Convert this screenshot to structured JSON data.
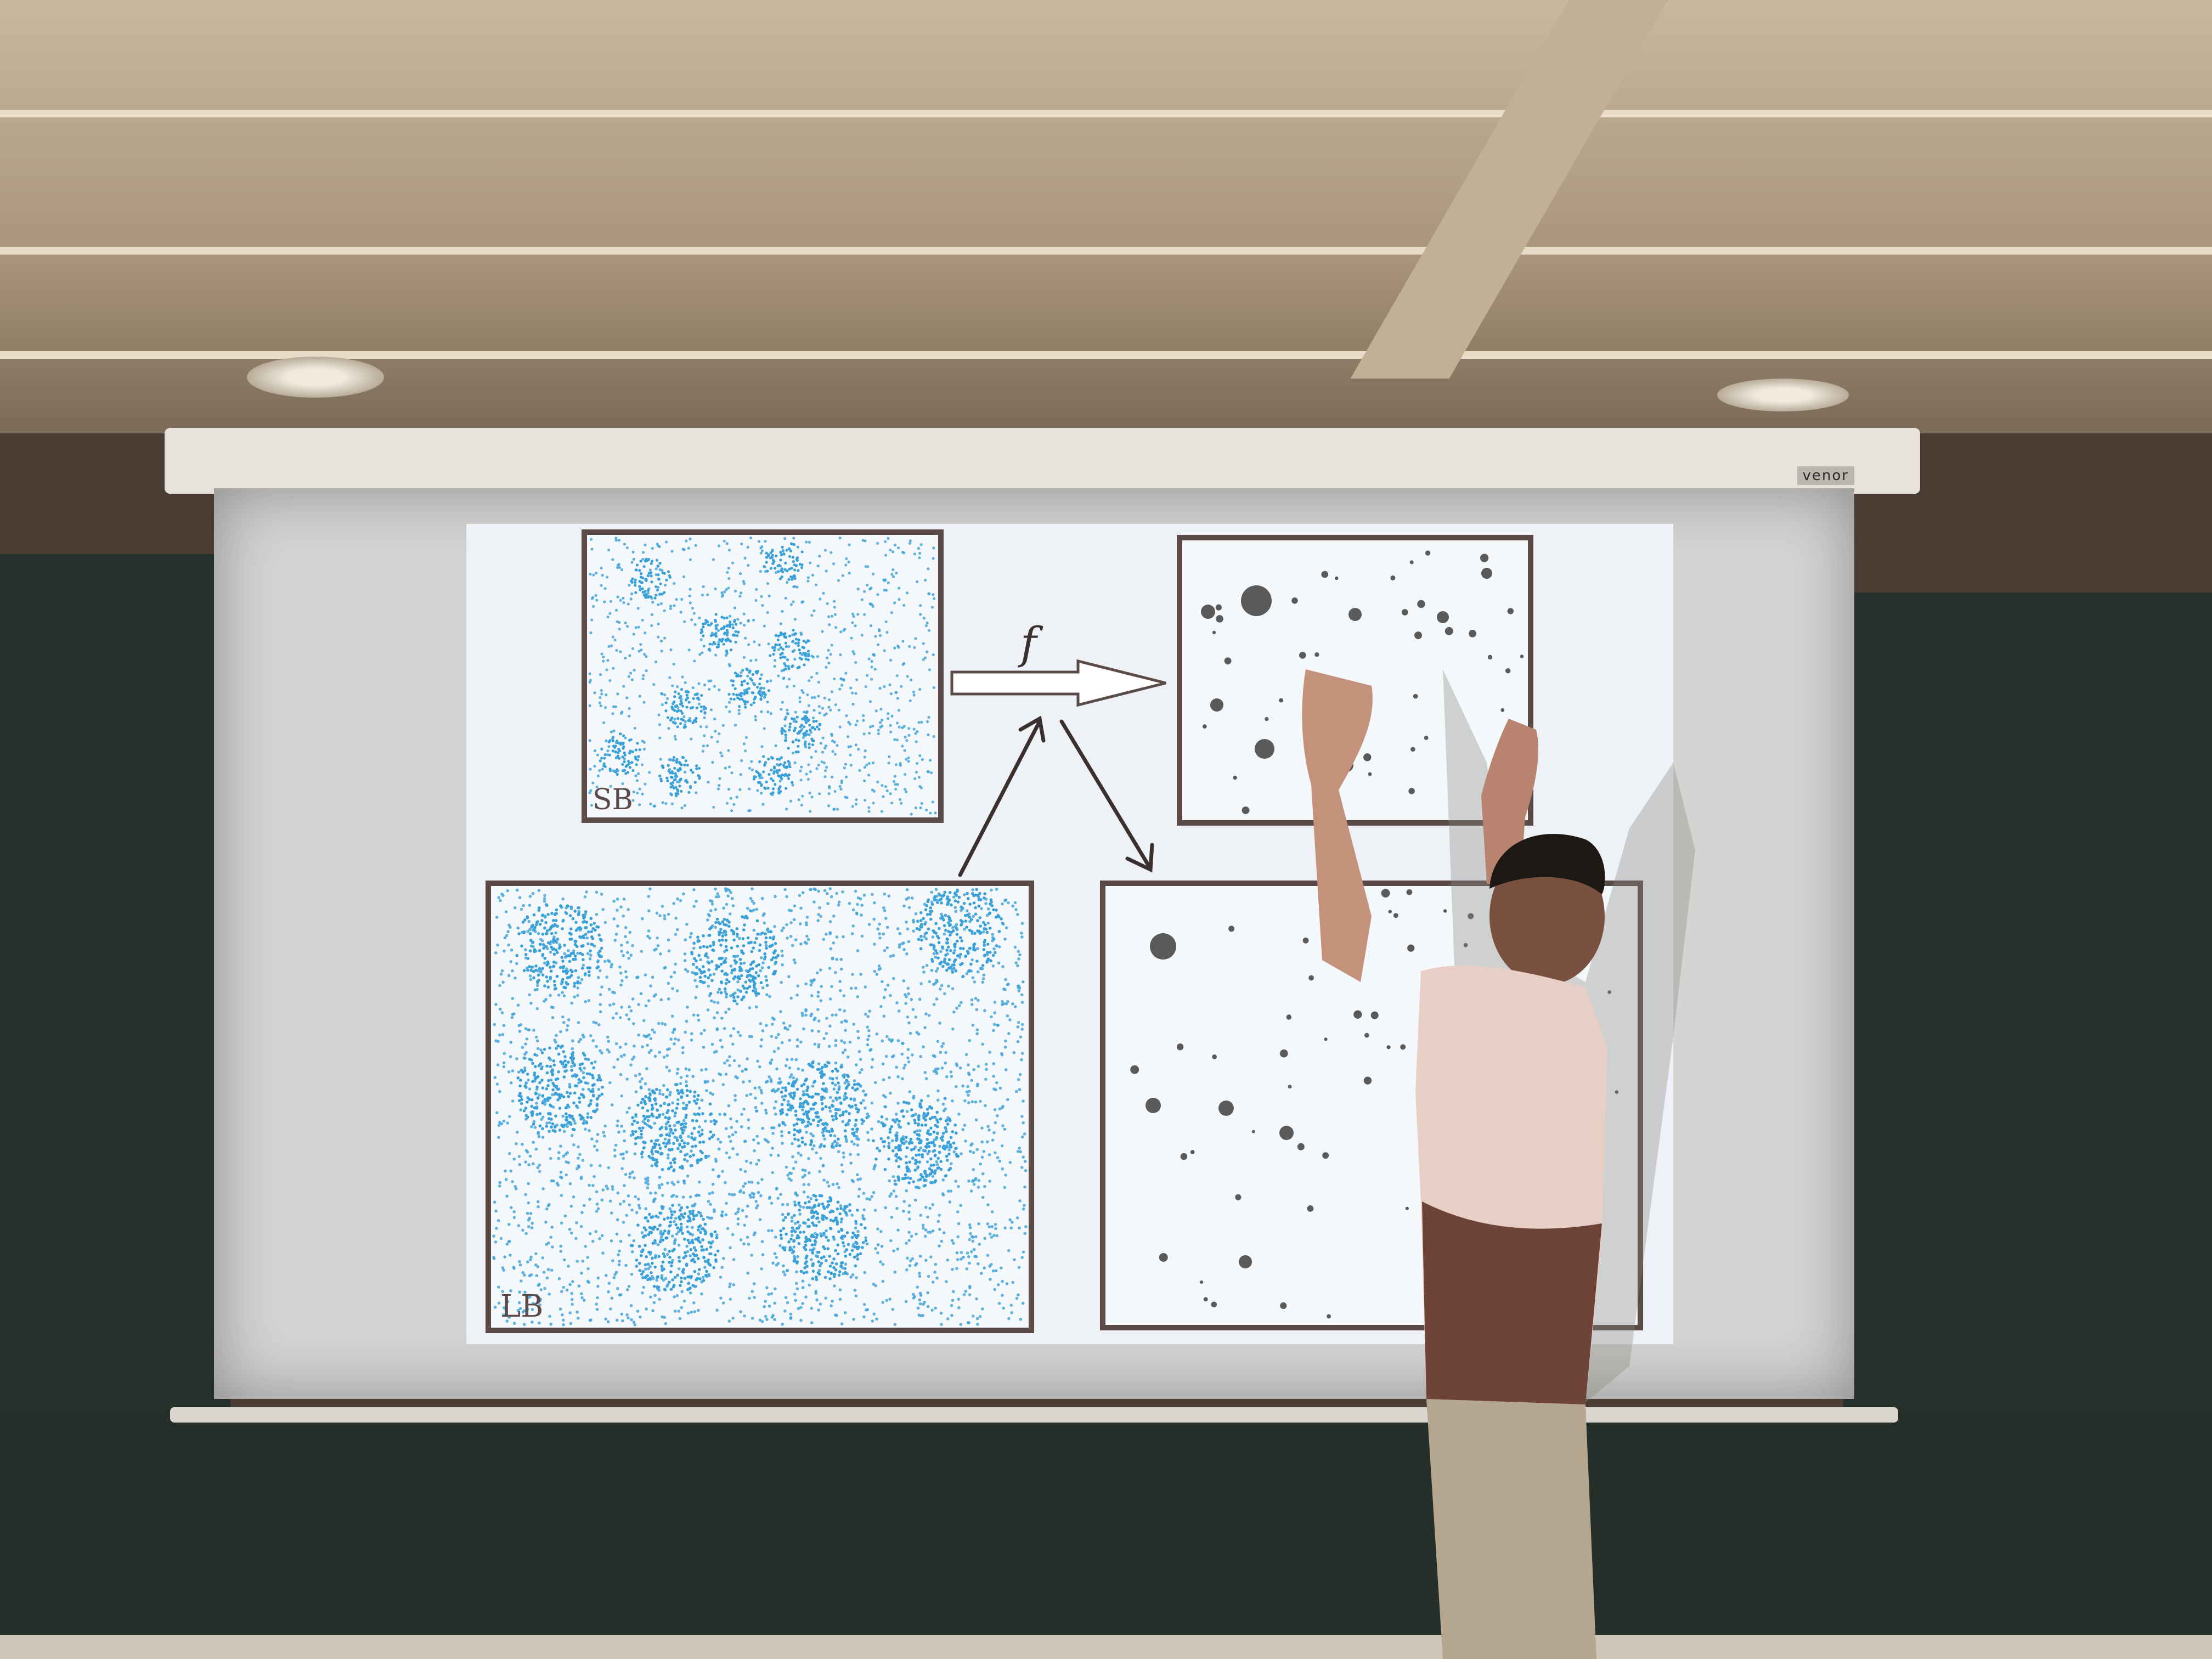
{
  "slide": {
    "panel_sb_label": "SB",
    "panel_lb_label": "LB",
    "map_symbol": "f",
    "point_color": "#3aa0d8",
    "halo_color": "#5a5a5a"
  },
  "projector_screen": {
    "brand": "venor"
  }
}
